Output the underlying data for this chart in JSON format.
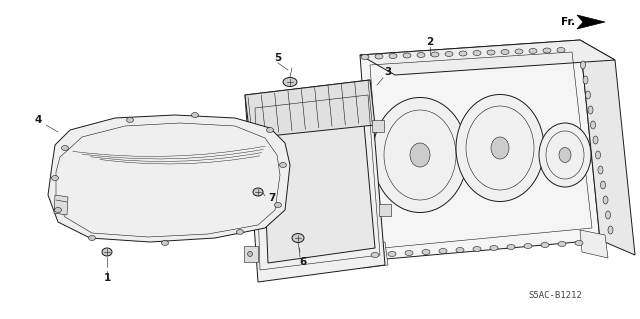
{
  "bg_color": "#ffffff",
  "line_color": "#1a1a1a",
  "ref_code": "S5AC-B1212",
  "fr_label": "Fr.",
  "lw": 0.7,
  "thin_lw": 0.4,
  "label_fontsize": 7.5
}
